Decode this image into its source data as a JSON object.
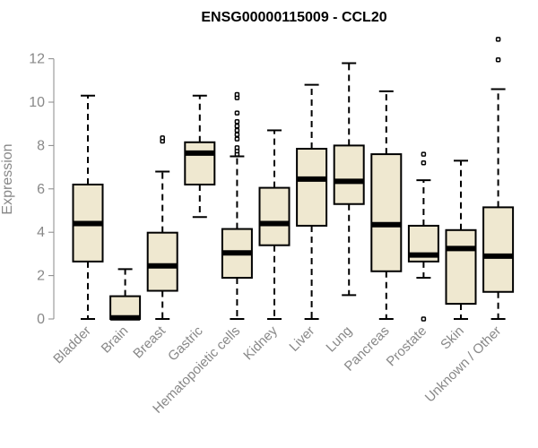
{
  "chart_data": {
    "type": "boxplot",
    "title": "ENSG00000115009 - CCL20",
    "xlabel": "",
    "ylabel": "Expression",
    "ylim": [
      0,
      13
    ],
    "yticks": [
      0,
      2,
      4,
      6,
      8,
      10,
      12
    ],
    "categories": [
      "Bladder",
      "Brain",
      "Breast",
      "Gastric",
      "Hematopoietic cells",
      "Kidney",
      "Liver",
      "Lung",
      "Pancreas",
      "Prostate",
      "Skin",
      "Unknown / Other"
    ],
    "boxes": [
      {
        "category": "Bladder",
        "min": 0,
        "q1": 2.65,
        "median": 4.4,
        "q3": 6.2,
        "max": 10.3,
        "outliers": []
      },
      {
        "category": "Brain",
        "min": 0,
        "q1": 0,
        "median": 0.05,
        "q3": 1.05,
        "max": 2.3,
        "outliers": []
      },
      {
        "category": "Breast",
        "min": 0,
        "q1": 1.3,
        "median": 2.45,
        "q3": 3.98,
        "max": 6.8,
        "outliers": [
          8.2,
          8.35
        ]
      },
      {
        "category": "Gastric",
        "min": 4.7,
        "q1": 6.2,
        "median": 7.65,
        "q3": 8.15,
        "max": 10.3,
        "outliers": []
      },
      {
        "category": "Hematopoietic cells",
        "min": 0,
        "q1": 1.9,
        "median": 3.05,
        "q3": 4.15,
        "max": 7.5,
        "outliers": [
          7.6,
          7.75,
          7.9,
          8.3,
          8.5,
          8.7,
          8.9,
          9.1,
          9.5,
          10.2,
          10.35
        ]
      },
      {
        "category": "Kidney",
        "min": 0,
        "q1": 3.4,
        "median": 4.4,
        "q3": 6.05,
        "max": 8.7,
        "outliers": []
      },
      {
        "category": "Liver",
        "min": 0,
        "q1": 4.3,
        "median": 6.45,
        "q3": 7.85,
        "max": 10.8,
        "outliers": []
      },
      {
        "category": "Lung",
        "min": 1.1,
        "q1": 5.3,
        "median": 6.35,
        "q3": 8.0,
        "max": 11.8,
        "outliers": []
      },
      {
        "category": "Pancreas",
        "min": 0,
        "q1": 2.2,
        "median": 4.35,
        "q3": 7.6,
        "max": 10.5,
        "outliers": []
      },
      {
        "category": "Prostate",
        "min": 1.9,
        "q1": 2.65,
        "median": 2.95,
        "q3": 4.3,
        "max": 6.4,
        "outliers": [
          0,
          7.2,
          7.6
        ]
      },
      {
        "category": "Skin",
        "min": 0,
        "q1": 0.7,
        "median": 3.25,
        "q3": 4.1,
        "max": 7.3,
        "outliers": []
      },
      {
        "category": "Unknown / Other",
        "min": 0,
        "q1": 1.25,
        "median": 2.9,
        "q3": 5.15,
        "max": 10.6,
        "outliers": [
          11.95,
          12.9
        ]
      }
    ],
    "box_color": "#efe8d0",
    "line_color": "#000000",
    "axis_color": "#888888",
    "grid": false,
    "legend": "none"
  }
}
